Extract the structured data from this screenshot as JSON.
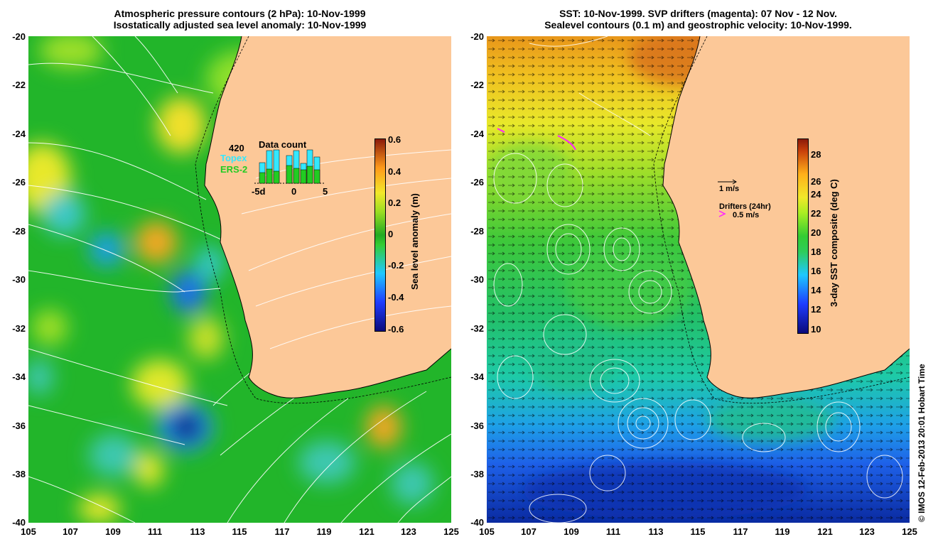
{
  "left_panel": {
    "title_line1": "Atmospheric pressure contours (2 hPa): 10-Nov-1999",
    "title_line2": "Isostatically adjusted sea level anomaly: 10-Nov-1999",
    "colorbar_label": "Sea level anomaly (m)",
    "colorbar_ticks": [
      "0.6",
      "0.4",
      "0.2",
      "0",
      "-0.2",
      "-0.4",
      "-0.6"
    ],
    "inset": {
      "count": "420",
      "topex_label": "Topex",
      "ers2_label": "ERS-2",
      "title": "Data count",
      "x_ticks": [
        "-5d",
        "0",
        "5"
      ],
      "colors": {
        "topex": "#33e8ff",
        "ers2": "#22cc22"
      }
    }
  },
  "right_panel": {
    "title_line1": "SST: 10-Nov-1999. SVP drifters (magenta): 07 Nov - 12 Nov.",
    "title_line2": "Sealevel contours (0.1 m) and geostrophic velocity: 10-Nov-1999.",
    "colorbar_label": "3-day SST composite (deg C)",
    "colorbar_ticks": [
      "28",
      "26",
      "24",
      "22",
      "20",
      "18",
      "16",
      "14",
      "12",
      "10"
    ],
    "vector_scale_label": "1 m/s",
    "drifter_legend_title": "Drifters (24hr)",
    "drifter_legend_scale": "0.5 m/s",
    "drifter_color": "#ff22ff"
  },
  "axes": {
    "y_ticks": [
      "-20",
      "-22",
      "-24",
      "-26",
      "-28",
      "-30",
      "-32",
      "-34",
      "-36",
      "-38",
      "-40"
    ],
    "x_ticks": [
      "105",
      "107",
      "109",
      "111",
      "113",
      "115",
      "117",
      "119",
      "121",
      "123",
      "125"
    ]
  },
  "credit": "© IMOS 12-Feb-2013 20:01 Hobart Time",
  "colors": {
    "land": "#fcc898",
    "ocean_base": "#22bb22"
  }
}
